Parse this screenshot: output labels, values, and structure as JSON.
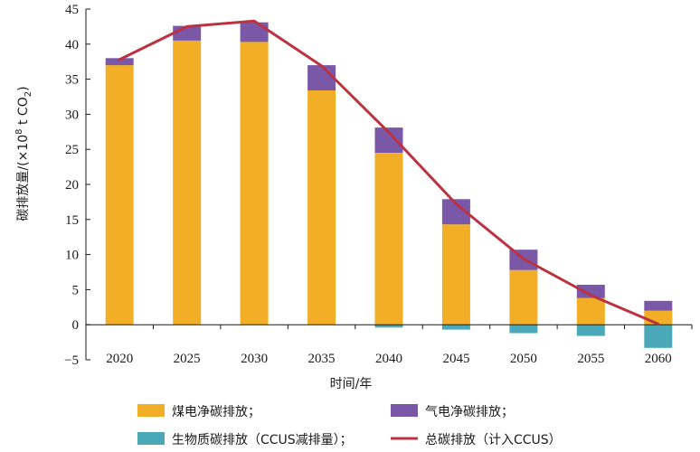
{
  "chart_data": {
    "type": "bar",
    "stacked": true,
    "ylabel_prefix": "碳排放量/(×10",
    "ylabel_exp": "8",
    "ylabel_mid": " t CO",
    "ylabel_sub": "2",
    "ylabel_suffix": ")",
    "xlabel": "时间/年",
    "ylim": [
      -5,
      45
    ],
    "yticks": [
      -5,
      0,
      5,
      10,
      15,
      20,
      25,
      30,
      35,
      40,
      45
    ],
    "categories": [
      "2020",
      "2025",
      "2030",
      "2035",
      "2040",
      "2045",
      "2050",
      "2055",
      "2060"
    ],
    "series": [
      {
        "name": "煤电净碳排放；",
        "kind": "bar",
        "color": "#f2ae26",
        "values": [
          37.0,
          40.5,
          40.3,
          33.4,
          24.5,
          14.3,
          7.8,
          3.8,
          2.0
        ]
      },
      {
        "name": "气电净碳排放；",
        "kind": "bar",
        "color": "#7b57a8",
        "values": [
          1.0,
          2.1,
          2.8,
          3.6,
          3.6,
          3.6,
          2.9,
          1.9,
          1.4
        ]
      },
      {
        "name": "生物质碳排放（CCUS减排量）；",
        "kind": "bar",
        "color": "#4aa8b9",
        "values": [
          0,
          0,
          0,
          0,
          -0.4,
          -0.7,
          -1.2,
          -1.6,
          -3.3
        ]
      },
      {
        "name": "总碳排放（计入CCUS）",
        "kind": "line",
        "color": "#bb3241",
        "values": [
          37.8,
          42.5,
          43.3,
          36.9,
          27.4,
          17.2,
          9.4,
          4.2,
          0.1
        ]
      }
    ],
    "grid": false,
    "legend_position": "bottom"
  }
}
